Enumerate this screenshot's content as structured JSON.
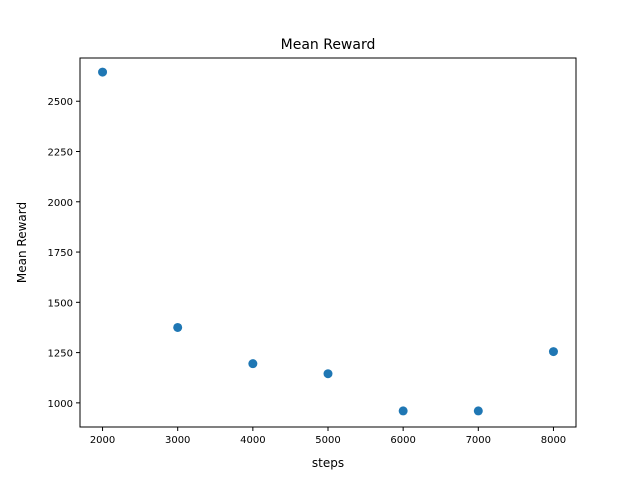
{
  "chart_data": {
    "type": "scatter",
    "title": "Mean Reward",
    "xlabel": "steps",
    "ylabel": "Mean Reward",
    "x": [
      2000,
      3000,
      4000,
      5000,
      6000,
      7000,
      8000
    ],
    "y": [
      2645,
      1375,
      1195,
      1145,
      960,
      960,
      1255
    ],
    "xlim": [
      1700,
      8300
    ],
    "ylim": [
      880,
      2715
    ],
    "xticks": [
      2000,
      3000,
      4000,
      5000,
      6000,
      7000,
      8000
    ],
    "yticks": [
      1000,
      1250,
      1500,
      1750,
      2000,
      2250,
      2500
    ],
    "grid": false,
    "colors": {
      "marker": "#1f77b4",
      "axes": "#000000",
      "background": "#ffffff"
    }
  }
}
